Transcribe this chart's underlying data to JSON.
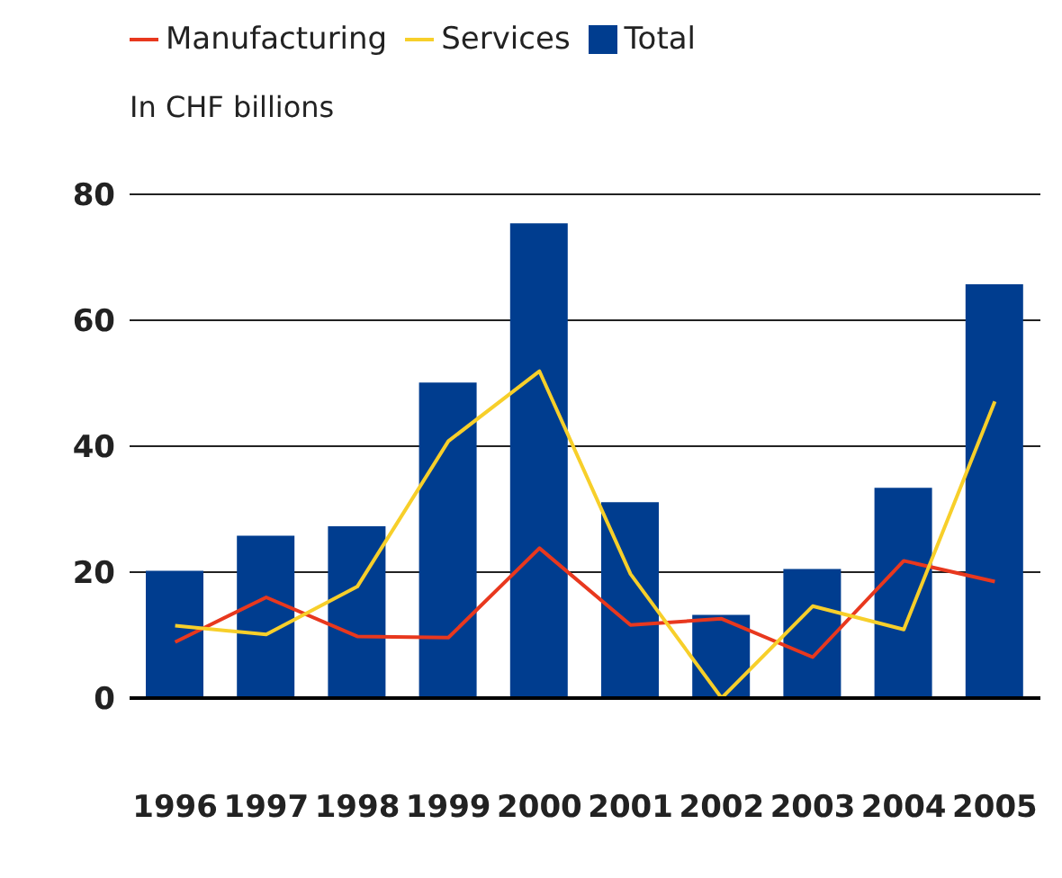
{
  "chart_data": {
    "type": "bar",
    "ylabel": "In CHF billions",
    "categories": [
      "1996",
      "1997",
      "1998",
      "1999",
      "2000",
      "2001",
      "2002",
      "2003",
      "2004",
      "2005"
    ],
    "series": [
      {
        "name": "Total",
        "color": "#003d8f",
        "values": [
          20.2,
          25.8,
          27.3,
          50.1,
          75.4,
          31.1,
          13.2,
          20.5,
          33.4,
          65.7
        ]
      },
      {
        "name": "Manufacturing",
        "type": "line",
        "color": "#e8381e",
        "values": [
          8.9,
          16.0,
          9.8,
          9.6,
          23.8,
          11.6,
          12.6,
          6.5,
          21.8,
          18.5
        ]
      },
      {
        "name": "Services",
        "type": "line",
        "color": "#f7cf2a",
        "values": [
          11.5,
          10.1,
          17.7,
          40.8,
          51.9,
          19.7,
          0,
          14.6,
          10.9,
          47.1
        ]
      }
    ],
    "ylim": [
      0,
      80
    ],
    "yticks": [
      0,
      20,
      40,
      60,
      80
    ],
    "grid": "y",
    "legend": "top left",
    "marker": "none",
    "line_style": "solid"
  }
}
